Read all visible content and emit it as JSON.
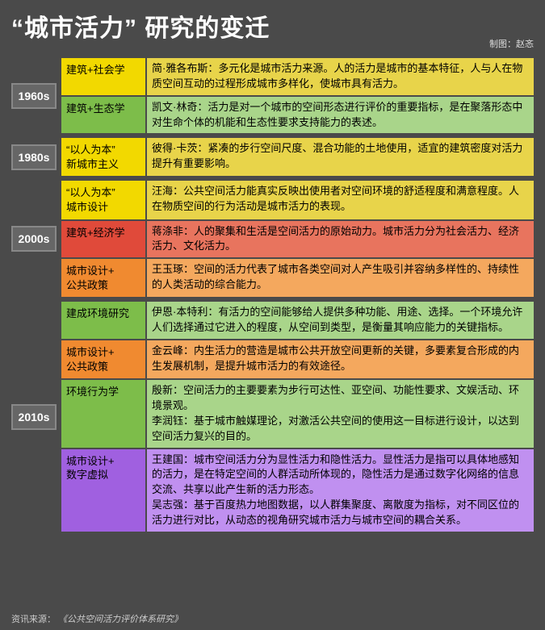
{
  "title": "“城市活力” 研究的变迁",
  "credit": "制图：赵忞",
  "footer_label": "资讯来源：",
  "footer_source": "《公共空间活力评价体系研究》",
  "colors": {
    "yellow": "#f2d900",
    "yellow_desc": "#e8d44a",
    "green": "#7dbd4a",
    "green_desc": "#a9d58a",
    "red": "#e04a3a",
    "red_desc": "#e8745e",
    "orange": "#f08a30",
    "orange_desc": "#f4a85e",
    "purple": "#a060e0",
    "purple_desc": "#c090f0",
    "grey": "#bfbfbf"
  },
  "eras": [
    {
      "label": "1960s",
      "rows": [
        {
          "cat": "建筑+社会学",
          "c": "yellow",
          "desc": "简·雅各布斯：多元化是城市活力来源。人的活力是城市的基本特征，人与人在物质空间互动的过程形成城市多样化，使城市具有活力。"
        },
        {
          "cat": "建筑+生态学",
          "c": "green",
          "desc": "凯文·林奇：活力是对一个城市的空间形态进行评价的重要指标，是在聚落形态中对生命个体的机能和生态性要求支持能力的表述。"
        }
      ]
    },
    {
      "label": "1980s",
      "rows": [
        {
          "cat": "“以人为本”\n新城市主义",
          "c": "yellow",
          "desc": "彼得·卡茨：紧凑的步行空间尺度、混合功能的土地使用，适宜的建筑密度对活力提升有重要影响。"
        }
      ]
    },
    {
      "label": "2000s",
      "rows": [
        {
          "cat": "“以人为本”\n城市设计",
          "c": "yellow",
          "desc": "汪海：公共空间活力能真实反映出使用者对空间环境的舒适程度和满意程度。人在物质空间的行为活动是城市活力的表现。"
        },
        {
          "cat": "建筑+经济学",
          "c": "red",
          "desc": "蒋涤非：人的聚集和生活是空间活力的原始动力。城市活力分为社会活力、经济活力、文化活力。"
        },
        {
          "cat": "城市设计+\n公共政策",
          "c": "orange",
          "desc": "王玉琢：空间的活力代表了城市各类空间对人产生吸引并容纳多样性的、持续性的人类活动的综合能力。"
        }
      ]
    },
    {
      "label": "2010s",
      "rows": [
        {
          "cat": "建成环境研究",
          "c": "green",
          "desc": "伊恩·本特利：有活力的空间能够给人提供多种功能、用途、选择。一个环境允许人们选择通过它进入的程度，从空间到类型，是衡量其响应能力的关键指标。"
        },
        {
          "cat": "城市设计+\n公共政策",
          "c": "orange",
          "desc": "金云峰：内生活力的营造是城市公共开放空间更新的关键，多要素复合形成的内生发展机制，是提升城市活力的有效途径。"
        },
        {
          "cat": "环境行为学",
          "c": "green",
          "desc": "殷新：空间活力的主要要素为步行可达性、亚空间、功能性要求、文娱活动、环境景观。\n李润钰：基于城市触媒理论，对激活公共空间的使用这一目标进行设计，以达到空间活力复兴的目的。"
        },
        {
          "cat": "城市设计+\n数字虚拟",
          "c": "purple",
          "desc": "王建国：城市空间活力分为显性活力和隐性活力。显性活力是指可以具体地感知的活力，是在特定空间的人群活动所体现的，隐性活力是通过数字化网络的信息交流、共享以此产生新的活力形态。\n吴志强：基于百度热力地图数据，以人群集聚度、离散度为指标，对不同区位的活力进行对比，从动态的视角研究城市活力与城市空间的耦合关系。"
        }
      ]
    }
  ]
}
